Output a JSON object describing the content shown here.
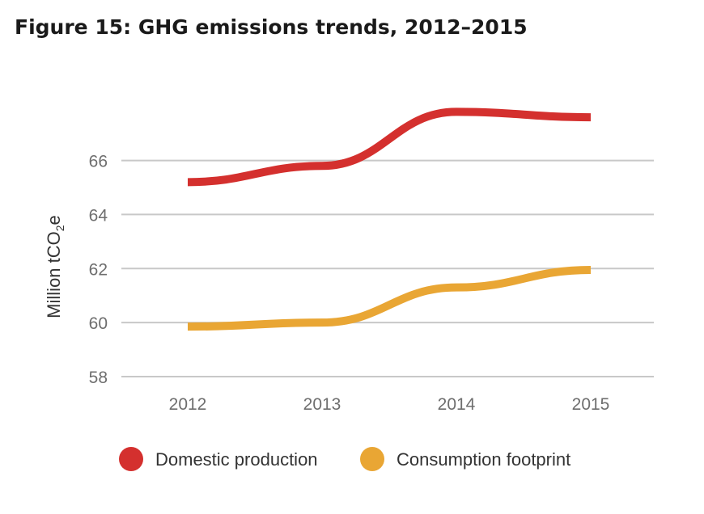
{
  "chart_data": {
    "type": "line",
    "title": "Figure 15: GHG emissions trends, 2012–2015",
    "xlabel": "",
    "ylabel_main": "Million tCO",
    "ylabel_sub": "2",
    "ylabel_suffix": "e",
    "categories": [
      "2012",
      "2013",
      "2014",
      "2015"
    ],
    "yticks": [
      "58",
      "60",
      "62",
      "64",
      "66"
    ],
    "ylim": [
      58,
      68.5
    ],
    "grid": true,
    "legend_position": "bottom",
    "series": [
      {
        "name": "Domestic production",
        "color": "#d4302e",
        "values": [
          65.2,
          65.8,
          67.8,
          67.6
        ]
      },
      {
        "name": "Consumption footprint",
        "color": "#e9a634",
        "values": [
          59.85,
          60.0,
          61.3,
          61.95
        ]
      }
    ]
  }
}
